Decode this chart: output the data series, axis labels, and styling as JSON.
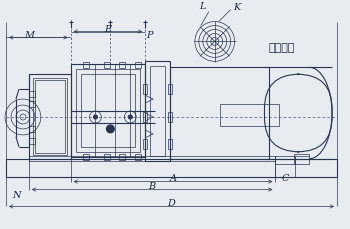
{
  "bg_color": "#e8ecf0",
  "line_color": "#2a3550",
  "dash_color": "#4a5a7a",
  "text_color": "#1a2540",
  "title_text": "吸排气口",
  "label_L": "L",
  "label_K": "K",
  "label_M": "M",
  "label_E": "E",
  "label_P": "P",
  "label_N": "N",
  "label_A": "A",
  "label_B": "B",
  "label_C": "C",
  "label_D": "D",
  "figsize": [
    3.5,
    2.3
  ],
  "dpi": 100
}
